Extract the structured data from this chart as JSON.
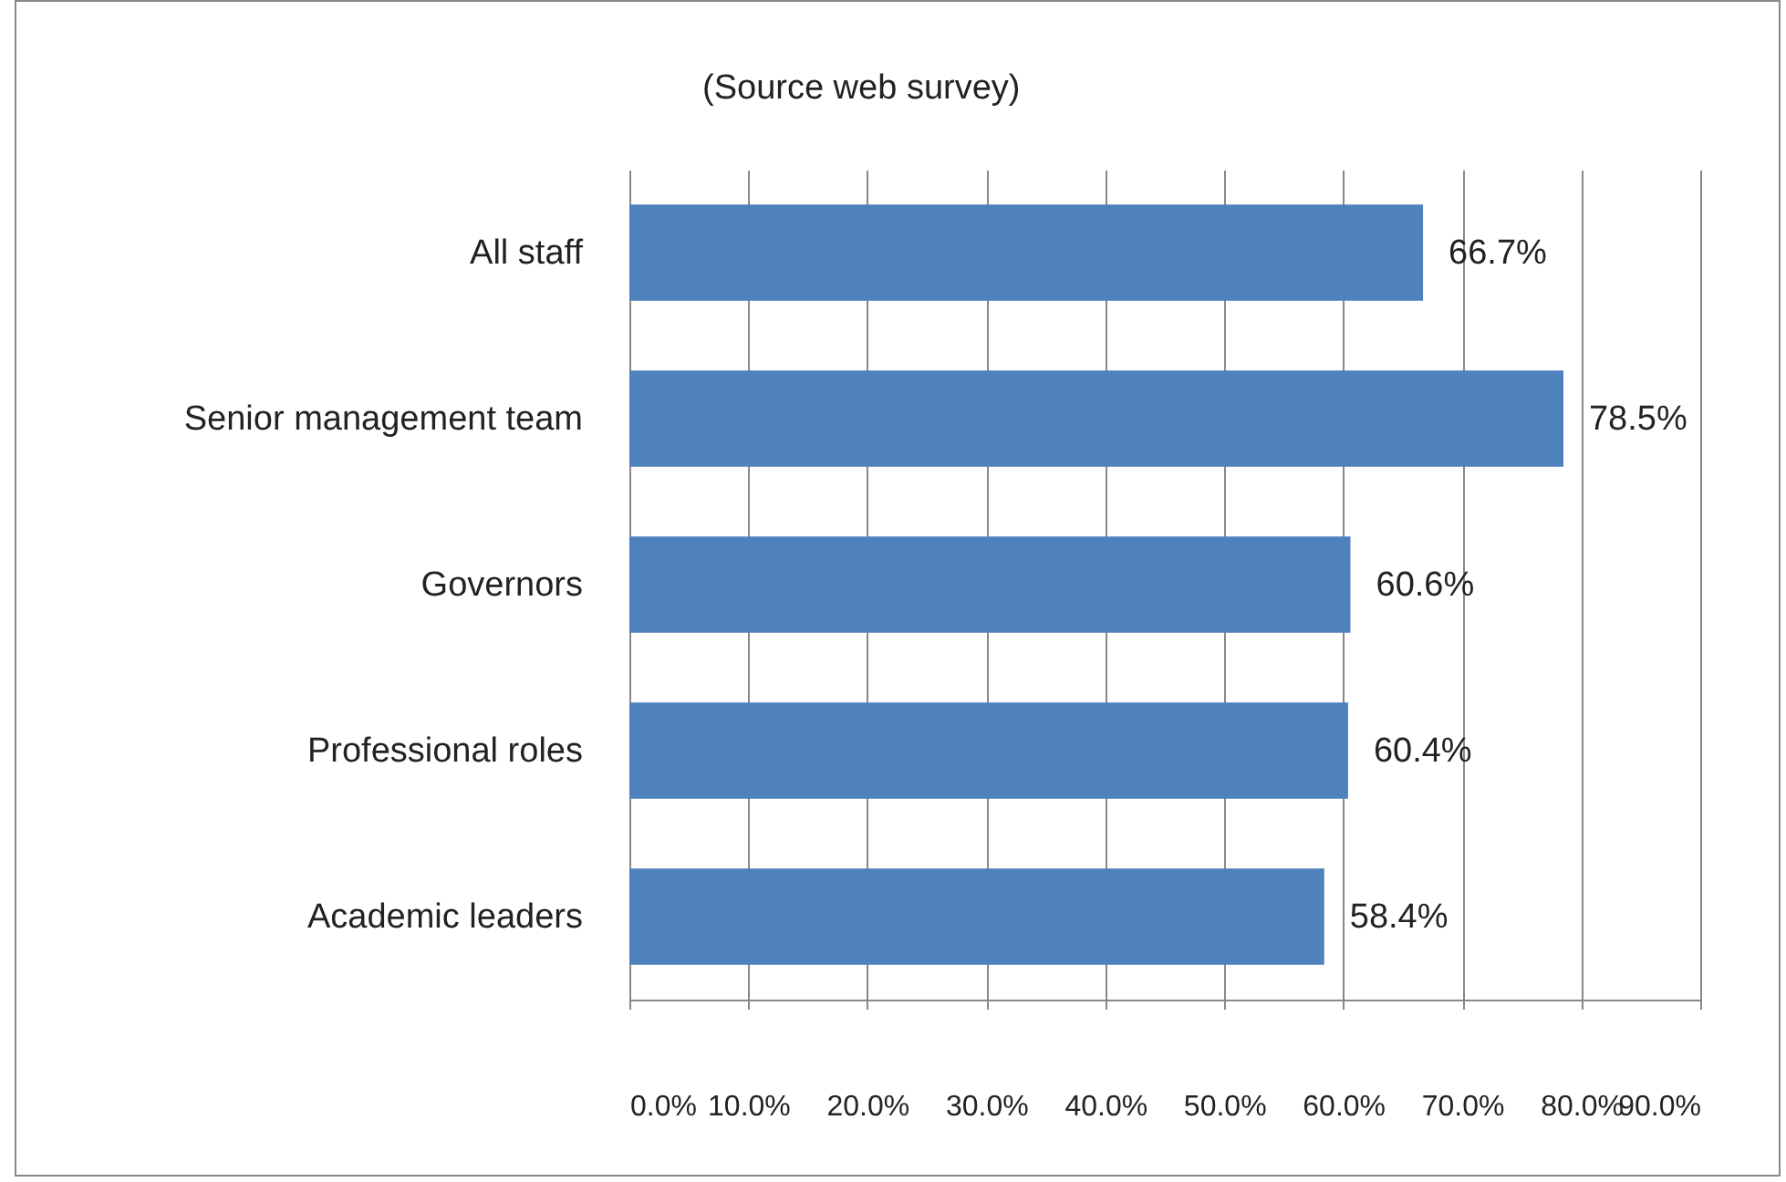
{
  "chart_data": {
    "type": "bar",
    "orientation": "horizontal",
    "annotations": [
      "(Source web survey)"
    ],
    "categories": [
      "All staff",
      "Senior management team",
      "Governors",
      "Professional roles",
      "Academic leaders"
    ],
    "values": [
      66.7,
      78.5,
      60.6,
      60.4,
      58.4
    ],
    "value_labels": [
      "66.7%",
      "78.5%",
      "60.6%",
      "60.4%",
      "58.4%"
    ],
    "color": "#4f81bd",
    "xlim": [
      0,
      90
    ],
    "xticks": [
      {
        "value": 0,
        "label": "0.0%"
      },
      {
        "value": 10,
        "label": "10.0%"
      },
      {
        "value": 20,
        "label": "20.0%"
      },
      {
        "value": 30,
        "label": "30.0%"
      },
      {
        "value": 40,
        "label": "40.0%"
      },
      {
        "value": 50,
        "label": "50.0%"
      },
      {
        "value": 60,
        "label": "60.0%"
      },
      {
        "value": 70,
        "label": "70.0%"
      },
      {
        "value": 80,
        "label": "80.0%"
      },
      {
        "value": 90,
        "label": "90.0%"
      }
    ],
    "grid": "x"
  }
}
